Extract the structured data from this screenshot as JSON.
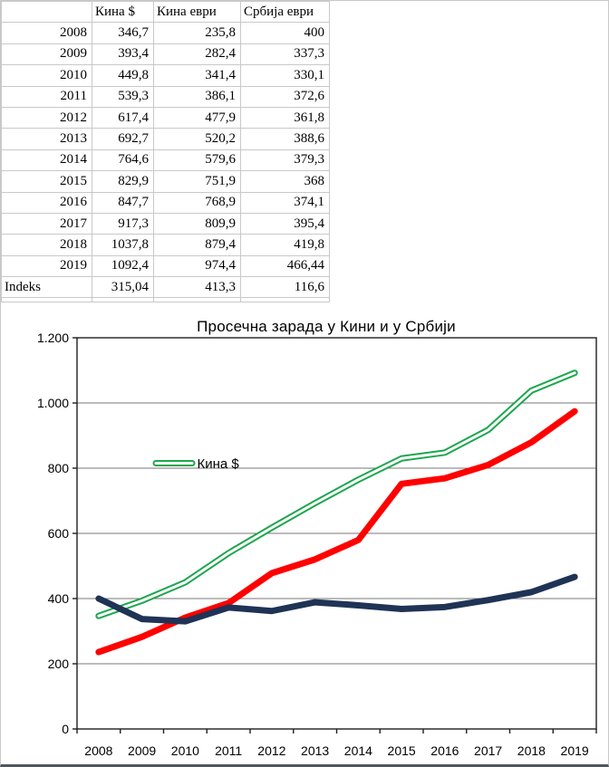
{
  "table": {
    "columns": [
      "",
      "Кина $",
      "Кина еври",
      "Србија еври"
    ],
    "rows": [
      [
        "2008",
        "346,7",
        "235,8",
        "400"
      ],
      [
        "2009",
        "393,4",
        "282,4",
        "337,3"
      ],
      [
        "2010",
        "449,8",
        "341,4",
        "330,1"
      ],
      [
        "2011",
        "539,3",
        "386,1",
        "372,6"
      ],
      [
        "2012",
        "617,4",
        "477,9",
        "361,8"
      ],
      [
        "2013",
        "692,7",
        "520,2",
        "388,6"
      ],
      [
        "2014",
        "764,6",
        "579,6",
        "379,3"
      ],
      [
        "2015",
        "829,9",
        "751,9",
        "368"
      ],
      [
        "2016",
        "847,7",
        "768,9",
        "374,1"
      ],
      [
        "2017",
        "917,3",
        "809,9",
        "395,4"
      ],
      [
        "2018",
        "1037,8",
        "879,4",
        "419,8"
      ],
      [
        "2019",
        "1092,4",
        "974,4",
        "466,44"
      ],
      [
        "Indeks",
        "315,04",
        "413,3",
        "116,6"
      ]
    ]
  },
  "chart_data": {
    "type": "line",
    "title": "Просечна зарада у Кини и у Србији",
    "categories": [
      "2008",
      "2009",
      "2010",
      "2011",
      "2012",
      "2013",
      "2014",
      "2015",
      "2016",
      "2017",
      "2018",
      "2019"
    ],
    "series": [
      {
        "name": "Кина $",
        "color": "#1ea64e",
        "line_style": "double-outline",
        "values": [
          346.7,
          393.4,
          449.8,
          539.3,
          617.4,
          692.7,
          764.6,
          829.9,
          847.7,
          917.3,
          1037.8,
          1092.4
        ]
      },
      {
        "name": "Кина еври",
        "color": "#ff0000",
        "line_style": "solid",
        "values": [
          235.8,
          282.4,
          341.4,
          386.1,
          477.9,
          520.2,
          579.6,
          751.9,
          768.9,
          809.9,
          879.4,
          974.4
        ]
      },
      {
        "name": "Србија еври",
        "color": "#1f3355",
        "line_style": "solid",
        "values": [
          400,
          337.3,
          330.1,
          372.6,
          361.8,
          388.6,
          379.3,
          368,
          374.1,
          395.4,
          419.8,
          466.44
        ]
      }
    ],
    "ylim": [
      0,
      1200
    ],
    "ytick_step": 200,
    "ytick_labels": [
      "0",
      "200",
      "400",
      "600",
      "800",
      "1.000",
      "1.200"
    ],
    "legend": {
      "entries": [
        "Кина $"
      ],
      "position": "inside-left"
    },
    "grid": true,
    "colors": {
      "gridline": "#777777",
      "axis": "#1f1f1f"
    }
  }
}
